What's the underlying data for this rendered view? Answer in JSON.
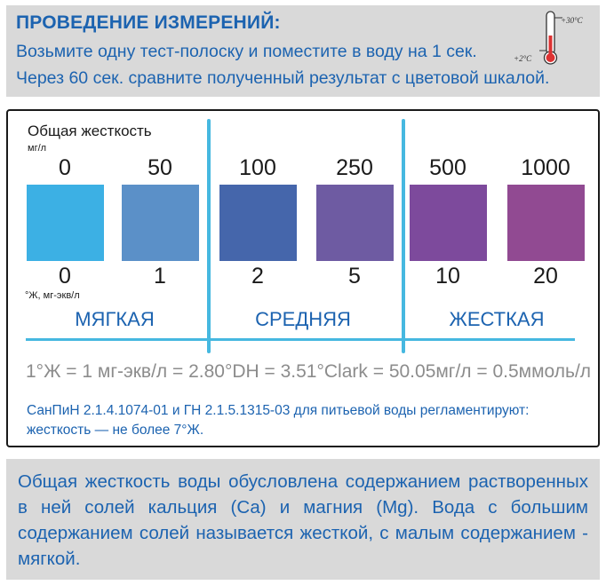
{
  "instructions": {
    "title": "ПРОВЕДЕНИЕ ИЗМЕРЕНИЙ:",
    "line1": "Возьмите одну тест-полоску и поместите в воду на 1 сек.",
    "line2": "Через 60 сек. сравните полученный результат с цветовой шкалой.",
    "thermometer": {
      "icon": "thermometer-icon",
      "max_label": "+30°C",
      "min_label": "+2°C"
    }
  },
  "scale": {
    "title": "Общая жесткость",
    "unit_top": "мг/л",
    "unit_bottom": "°Ж, мг-экв/л",
    "accent_color": "#46b8e0",
    "swatches": [
      {
        "top_value": "0",
        "bottom_value": "0",
        "color": "#3cb0e4"
      },
      {
        "top_value": "50",
        "bottom_value": "1",
        "color": "#5b90c8"
      },
      {
        "top_value": "100",
        "bottom_value": "2",
        "color": "#4566ab"
      },
      {
        "top_value": "250",
        "bottom_value": "5",
        "color": "#6e5ba2"
      },
      {
        "top_value": "500",
        "bottom_value": "10",
        "color": "#7d4a9c"
      },
      {
        "top_value": "1000",
        "bottom_value": "20",
        "color": "#914a92"
      }
    ],
    "categories": [
      "МЯГКАЯ",
      "СРЕДНЯЯ",
      "ЖЕСТКАЯ"
    ],
    "formula": "1°Ж = 1 мг-экв/л = 2.80°DH = 3.51°Clark = 50.05мг/л = 0.5ммоль/л",
    "regulation_line1": "СанПиН 2.1.4.1074-01 и ГН 2.1.5.1315-03 для питьевой воды регламентируют:",
    "regulation_line2": "жесткость — не более 7°Ж."
  },
  "info": {
    "text": "Общая жесткость воды обусловлена содержанием растворенных в ней солей кальция (Са) и магния (Mg). Вода с большим содержанием солей называется жесткой, с малым содержанием - мягкой."
  },
  "colors": {
    "brand_blue": "#1c63b0",
    "panel_gray": "#d9d9d9"
  }
}
